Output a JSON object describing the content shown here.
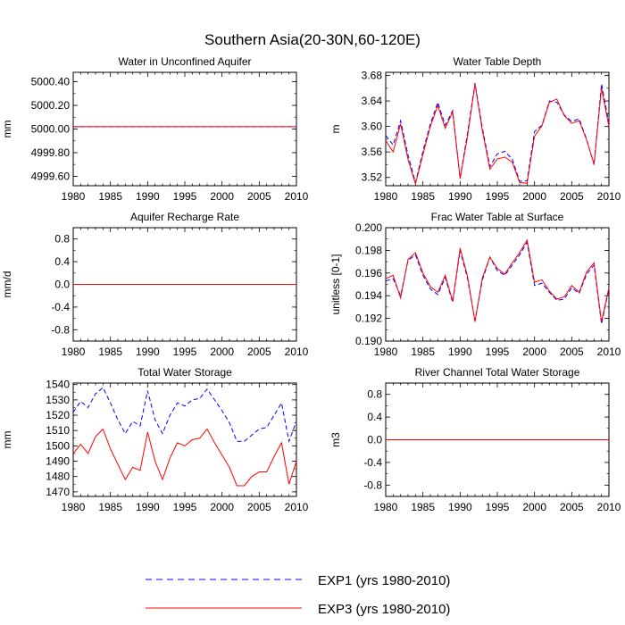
{
  "figure": {
    "title": "Southern Asia(20-30N,60-120E)"
  },
  "legend": [
    {
      "label": "EXP1 (yrs 1980-2010)",
      "color": "#0000ff",
      "dash": "dashed"
    },
    {
      "label": "EXP3 (yrs 1980-2010)",
      "color": "#ff0000",
      "dash": "solid"
    }
  ],
  "chart_data": [
    {
      "type": "line",
      "title": "Water in Unconfined Aquifer",
      "ylabel": "mm",
      "xlim": [
        1980,
        2010
      ],
      "xticks": [
        1980,
        1985,
        1990,
        1995,
        2000,
        2005,
        2010
      ],
      "ylim": [
        4999.52,
        5000.48
      ],
      "yticks": [
        5000.4,
        5000.2,
        5000.0,
        4999.8,
        4999.6
      ],
      "ytick_labels": [
        "5000.40",
        "5000.20",
        "5000.00",
        "4999.80",
        "4999.60"
      ],
      "x": [
        1980,
        2010
      ],
      "series": [
        {
          "name": "EXP1 (yrs 1980-2010)",
          "values": [
            5000.02,
            5000.02
          ]
        },
        {
          "name": "EXP3 (yrs 1980-2010)",
          "values": [
            5000.02,
            5000.02
          ]
        }
      ]
    },
    {
      "type": "line",
      "title": "Water Table Depth",
      "ylabel": "m",
      "xlim": [
        1980,
        2010
      ],
      "xticks": [
        1980,
        1985,
        1990,
        1995,
        2000,
        2005,
        2010
      ],
      "ylim": [
        3.507,
        3.685
      ],
      "yticks": [
        3.68,
        3.64,
        3.6,
        3.56,
        3.52
      ],
      "ytick_labels": [
        "3.68",
        "3.64",
        "3.60",
        "3.56",
        "3.52"
      ],
      "x": [
        1980,
        1981,
        1982,
        1983,
        1984,
        1985,
        1986,
        1987,
        1988,
        1989,
        1990,
        1991,
        1992,
        1993,
        1994,
        1995,
        1996,
        1997,
        1998,
        1999,
        2000,
        2001,
        2002,
        2003,
        2004,
        2005,
        2006,
        2007,
        2008,
        2009,
        2010
      ],
      "series": [
        {
          "name": "EXP1 (yrs 1980-2010)",
          "values": [
            3.586,
            3.571,
            3.609,
            3.555,
            3.512,
            3.561,
            3.604,
            3.638,
            3.602,
            3.625,
            3.519,
            3.59,
            3.668,
            3.597,
            3.537,
            3.557,
            3.561,
            3.549,
            3.514,
            3.515,
            3.592,
            3.602,
            3.64,
            3.638,
            3.618,
            3.608,
            3.612,
            3.58,
            3.54,
            3.667,
            3.605
          ]
        },
        {
          "name": "EXP3 (yrs 1980-2010)",
          "values": [
            3.578,
            3.56,
            3.604,
            3.548,
            3.51,
            3.556,
            3.6,
            3.633,
            3.597,
            3.623,
            3.518,
            3.585,
            3.666,
            3.593,
            3.533,
            3.549,
            3.552,
            3.544,
            3.512,
            3.511,
            3.585,
            3.601,
            3.638,
            3.643,
            3.617,
            3.605,
            3.609,
            3.579,
            3.541,
            3.66,
            3.6
          ]
        }
      ]
    },
    {
      "type": "line",
      "title": "Aquifer Recharge Rate",
      "ylabel": "mm/d",
      "xlim": [
        1980,
        2010
      ],
      "xticks": [
        1980,
        1985,
        1990,
        1995,
        2000,
        2005,
        2010
      ],
      "ylim": [
        -1,
        1
      ],
      "yticks": [
        0.8,
        0.4,
        0.0,
        -0.4,
        -0.8
      ],
      "ytick_labels": [
        "0.8",
        "0.4",
        "0.0",
        "-0.4",
        "-0.8"
      ],
      "x": [
        1980,
        2010
      ],
      "series": [
        {
          "name": "EXP1 (yrs 1980-2010)",
          "values": [
            0,
            0
          ]
        },
        {
          "name": "EXP3 (yrs 1980-2010)",
          "values": [
            0,
            0
          ]
        }
      ]
    },
    {
      "type": "line",
      "title": "Frac Water Table at Surface",
      "ylabel": "unitless [0-1]",
      "xlim": [
        1980,
        2010
      ],
      "xticks": [
        1980,
        1985,
        1990,
        1995,
        2000,
        2005,
        2010
      ],
      "ylim": [
        0.19,
        0.2
      ],
      "yticks": [
        0.2,
        0.198,
        0.196,
        0.194,
        0.192,
        0.19
      ],
      "ytick_labels": [
        "0.200",
        "0.198",
        "0.196",
        "0.194",
        "0.192",
        "0.190"
      ],
      "x": [
        1980,
        1981,
        1982,
        1983,
        1984,
        1985,
        1986,
        1987,
        1988,
        1989,
        1990,
        1991,
        1992,
        1993,
        1994,
        1995,
        1996,
        1997,
        1998,
        1999,
        2000,
        2001,
        2002,
        2003,
        2004,
        2005,
        2006,
        2007,
        2008,
        2009,
        2010
      ],
      "series": [
        {
          "name": "EXP1 (yrs 1980-2010)",
          "values": [
            0.1953,
            0.1955,
            0.194,
            0.1971,
            0.1976,
            0.1958,
            0.1946,
            0.1941,
            0.1956,
            0.1934,
            0.198,
            0.1955,
            0.1918,
            0.1954,
            0.1974,
            0.1962,
            0.1958,
            0.1967,
            0.1976,
            0.1987,
            0.1949,
            0.1951,
            0.1943,
            0.1936,
            0.1937,
            0.1947,
            0.1942,
            0.1959,
            0.1967,
            0.1915,
            0.1946
          ]
        },
        {
          "name": "EXP3 (yrs 1980-2010)",
          "values": [
            0.1955,
            0.1958,
            0.1938,
            0.1972,
            0.1978,
            0.196,
            0.1948,
            0.1943,
            0.1958,
            0.1935,
            0.1982,
            0.1957,
            0.1917,
            0.1956,
            0.1974,
            0.1964,
            0.1959,
            0.1969,
            0.1978,
            0.1989,
            0.1952,
            0.1954,
            0.1944,
            0.1937,
            0.1939,
            0.1949,
            0.1943,
            0.1961,
            0.1969,
            0.1917,
            0.1947
          ]
        }
      ]
    },
    {
      "type": "line",
      "title": "Total Water Storage",
      "ylabel": "mm",
      "xlim": [
        1980,
        2010
      ],
      "xticks": [
        1980,
        1985,
        1990,
        1995,
        2000,
        2005,
        2010
      ],
      "ylim": [
        1467,
        1541
      ],
      "yticks": [
        1540,
        1530,
        1520,
        1510,
        1500,
        1490,
        1480,
        1470
      ],
      "ytick_labels": [
        "1540",
        "1530",
        "1520",
        "1510",
        "1500",
        "1490",
        "1480",
        "1470"
      ],
      "x": [
        1980,
        1981,
        1982,
        1983,
        1984,
        1985,
        1986,
        1987,
        1988,
        1989,
        1990,
        1991,
        1992,
        1993,
        1994,
        1995,
        1996,
        1997,
        1998,
        1999,
        2000,
        2001,
        2002,
        2003,
        2004,
        2005,
        2006,
        2007,
        2008,
        2009,
        2010
      ],
      "series": [
        {
          "name": "EXP1 (yrs 1980-2010)",
          "values": [
            1522,
            1529,
            1525,
            1534,
            1538,
            1528,
            1517,
            1508,
            1516,
            1513,
            1536,
            1517,
            1508,
            1520,
            1528,
            1526,
            1530,
            1531,
            1537,
            1530,
            1523,
            1515,
            1503,
            1503,
            1507,
            1511,
            1512,
            1520,
            1528,
            1503,
            1516
          ]
        },
        {
          "name": "EXP3 (yrs 1980-2010)",
          "values": [
            1495,
            1501,
            1495,
            1506,
            1511,
            1498,
            1488,
            1478,
            1486,
            1484,
            1509,
            1490,
            1478,
            1492,
            1502,
            1500,
            1504,
            1505,
            1511,
            1502,
            1494,
            1486,
            1474,
            1474,
            1480,
            1483,
            1483,
            1493,
            1502,
            1475,
            1490
          ]
        }
      ]
    },
    {
      "type": "line",
      "title": "River Channel Total Water Storage",
      "ylabel": "m3",
      "xlim": [
        1980,
        2010
      ],
      "xticks": [
        1980,
        1985,
        1990,
        1995,
        2000,
        2005,
        2010
      ],
      "ylim": [
        -1,
        1
      ],
      "yticks": [
        0.8,
        0.4,
        0.0,
        -0.4,
        -0.8
      ],
      "ytick_labels": [
        "0.8",
        "0.4",
        "0.0",
        "-0.4",
        "-0.8"
      ],
      "x": [
        1980,
        2010
      ],
      "series": [
        {
          "name": "EXP1 (yrs 1980-2010)",
          "values": [
            0,
            0
          ]
        },
        {
          "name": "EXP3 (yrs 1980-2010)",
          "values": [
            0,
            0
          ]
        }
      ]
    }
  ]
}
